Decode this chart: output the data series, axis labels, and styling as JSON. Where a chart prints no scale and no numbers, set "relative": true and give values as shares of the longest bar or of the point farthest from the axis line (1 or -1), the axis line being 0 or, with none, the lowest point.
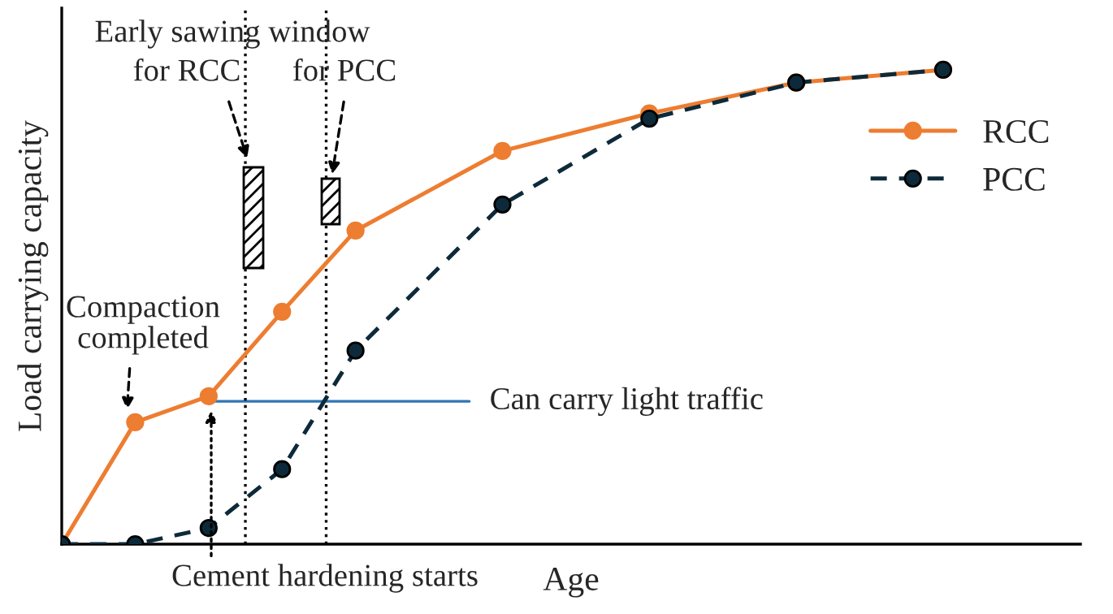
{
  "chart_data": {
    "type": "line",
    "relative": true,
    "xlabel": "Age",
    "ylabel": "Load carrying capacity",
    "categories": [
      null,
      null,
      null,
      null,
      null,
      null,
      null,
      null,
      null,
      null,
      null,
      null,
      null
    ],
    "series": [
      {
        "name": "RCC",
        "color": "#ed7d31",
        "marker": "circle",
        "line_style": "solid",
        "values": [
          0,
          0.257,
          0.312,
          0.49,
          0.661,
          null,
          0.829,
          null,
          0.908,
          null,
          0.973,
          null,
          1
        ]
      },
      {
        "name": "PCC",
        "color": "#0d2a3a",
        "marker": "circle",
        "line_style": "dashed",
        "values": [
          0,
          0,
          0.034,
          0.158,
          0.408,
          null,
          0.716,
          null,
          0.897,
          null,
          0.973,
          null,
          1
        ]
      }
    ],
    "ref_lines": [
      {
        "axis": "y",
        "value": 0.301,
        "color": "#2e75b6",
        "line_style": "solid",
        "label": "Can carry light traffic"
      }
    ],
    "annotations": [
      "Early sawing window",
      "for RCC",
      "for PCC",
      "Compaction\ncompleted",
      "Cement hardening starts"
    ],
    "legend": "right"
  }
}
